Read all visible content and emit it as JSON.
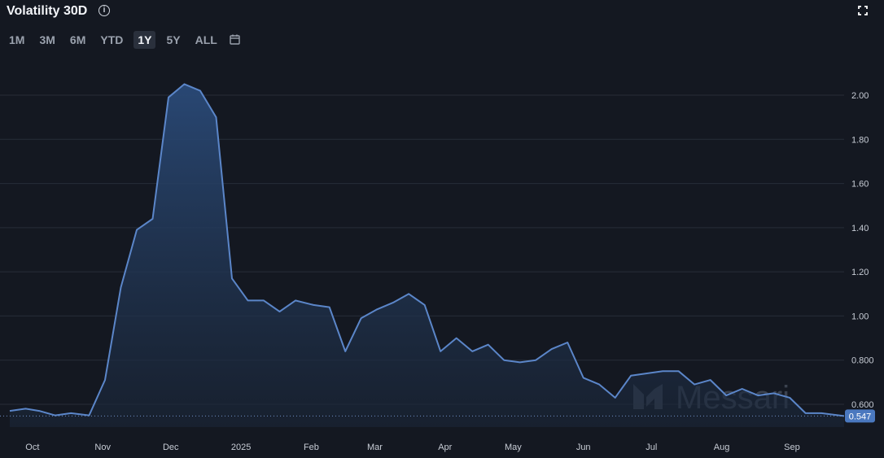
{
  "header": {
    "title": "Volatility 30D",
    "info_icon": "info-icon",
    "expand_icon": "expand-icon"
  },
  "ranges": {
    "items": [
      "1M",
      "3M",
      "6M",
      "YTD",
      "1Y",
      "5Y",
      "ALL"
    ],
    "active": "1Y",
    "calendar_icon": "calendar-icon"
  },
  "watermark": {
    "text": "Messari"
  },
  "colors": {
    "background": "#141821",
    "line": "#5b86c9",
    "fill_top": "#27426b",
    "grid": "#272d38",
    "badge": "#4a78bf"
  },
  "chart_data": {
    "type": "area",
    "title": "Volatility 30D",
    "xlabel": "",
    "ylabel": "",
    "ylim": [
      0.5,
      2.1
    ],
    "y_ticks": [
      0.6,
      0.8,
      1.0,
      1.2,
      1.4,
      1.6,
      1.8,
      2.0
    ],
    "y_tick_labels": [
      "0.600",
      "0.800",
      "1.00",
      "1.20",
      "1.40",
      "1.60",
      "1.80",
      "2.00"
    ],
    "x_tick_labels": [
      "Oct",
      "Nov",
      "Dec",
      "2025",
      "Feb",
      "Mar",
      "Apr",
      "May",
      "Jun",
      "Jul",
      "Aug",
      "Sep"
    ],
    "x_tick_dates": [
      "2024-10-01",
      "2024-11-01",
      "2024-12-01",
      "2025-01-01",
      "2025-02-01",
      "2025-03-01",
      "2025-04-01",
      "2025-05-01",
      "2025-06-01",
      "2025-07-01",
      "2025-08-01",
      "2025-09-01"
    ],
    "x_range": [
      "2024-09-21",
      "2025-09-24"
    ],
    "current_value": 0.547,
    "current_value_label": "0.547",
    "grid": true,
    "series": [
      {
        "x": [
          "2024-09-21",
          "2024-09-28",
          "2024-10-04",
          "2024-10-11",
          "2024-10-18",
          "2024-10-26",
          "2024-11-02",
          "2024-11-09",
          "2024-11-16",
          "2024-11-23",
          "2024-11-30",
          "2024-12-07",
          "2024-12-14",
          "2024-12-21",
          "2024-12-28",
          "2025-01-04",
          "2025-01-11",
          "2025-01-18",
          "2025-01-25",
          "2025-02-02",
          "2025-02-09",
          "2025-02-16",
          "2025-02-23",
          "2025-03-02",
          "2025-03-09",
          "2025-03-16",
          "2025-03-23",
          "2025-03-30",
          "2025-04-06",
          "2025-04-13",
          "2025-04-20",
          "2025-04-27",
          "2025-05-04",
          "2025-05-11",
          "2025-05-18",
          "2025-05-25",
          "2025-06-01",
          "2025-06-08",
          "2025-06-15",
          "2025-06-22",
          "2025-06-29",
          "2025-07-06",
          "2025-07-13",
          "2025-07-20",
          "2025-07-27",
          "2025-08-03",
          "2025-08-10",
          "2025-08-17",
          "2025-08-24",
          "2025-08-31",
          "2025-09-07",
          "2025-09-14",
          "2025-09-24"
        ],
        "values": [
          0.57,
          0.58,
          0.57,
          0.55,
          0.56,
          0.55,
          0.71,
          1.13,
          1.39,
          1.44,
          1.99,
          2.05,
          2.02,
          1.9,
          1.17,
          1.07,
          1.07,
          1.02,
          1.07,
          1.05,
          1.04,
          0.84,
          0.99,
          1.03,
          1.06,
          1.1,
          1.05,
          0.84,
          0.9,
          0.84,
          0.87,
          0.8,
          0.79,
          0.8,
          0.85,
          0.88,
          0.72,
          0.69,
          0.63,
          0.73,
          0.74,
          0.75,
          0.75,
          0.69,
          0.71,
          0.64,
          0.67,
          0.64,
          0.65,
          0.63,
          0.56,
          0.56,
          0.547
        ]
      }
    ]
  }
}
